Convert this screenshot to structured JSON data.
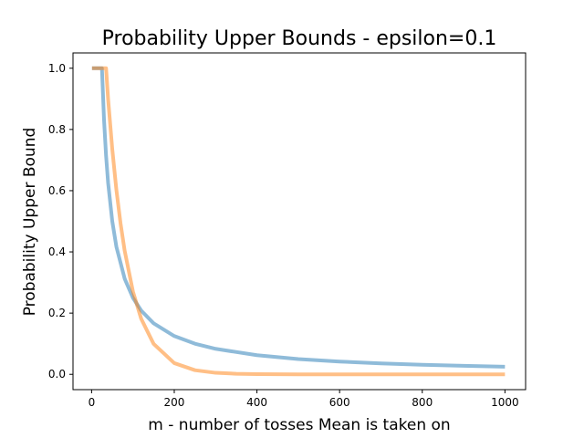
{
  "chart_data": {
    "type": "line",
    "title": "Probability Upper Bounds - epsilon=0.1",
    "xlabel": "m - number of tosses Mean is taken on",
    "ylabel": "Probability Upper Bound",
    "xlim": [
      -45,
      1050
    ],
    "ylim": [
      -0.05,
      1.05
    ],
    "xticks": [
      0,
      200,
      400,
      600,
      800,
      1000
    ],
    "xtick_labels": [
      "0",
      "200",
      "400",
      "600",
      "800",
      "1000"
    ],
    "yticks": [
      0.0,
      0.2,
      0.4,
      0.6,
      0.8,
      1.0
    ],
    "ytick_labels": [
      "0.0",
      "0.2",
      "0.4",
      "0.6",
      "0.8",
      "1.0"
    ],
    "grid": false,
    "legend": "none",
    "series": [
      {
        "color": "#1f77b4",
        "x": [
          1,
          10,
          20,
          25,
          30,
          35,
          40,
          50,
          60,
          80,
          100,
          120,
          150,
          200,
          250,
          300,
          400,
          500,
          600,
          700,
          800,
          900,
          1000
        ],
        "y": [
          1.0,
          1.0,
          1.0,
          1.0,
          0.8333,
          0.7143,
          0.625,
          0.5,
          0.4167,
          0.3125,
          0.25,
          0.2083,
          0.1667,
          0.125,
          0.1,
          0.0833,
          0.0625,
          0.05,
          0.0417,
          0.0357,
          0.0313,
          0.0278,
          0.025
        ]
      },
      {
        "color": "#ff7f0e",
        "x": [
          1,
          10,
          20,
          30,
          35,
          40,
          50,
          60,
          70,
          80,
          100,
          120,
          150,
          200,
          250,
          300,
          350,
          400,
          500,
          600,
          800,
          1000
        ],
        "y": [
          1.0,
          1.0,
          1.0,
          1.0,
          1.0,
          0.8987,
          0.7358,
          0.6024,
          0.4932,
          0.4038,
          0.2707,
          0.1814,
          0.0996,
          0.0366,
          0.0135,
          0.005,
          0.0018,
          0.0007,
          0.0001,
          0.0,
          0.0,
          0.0
        ]
      }
    ]
  }
}
